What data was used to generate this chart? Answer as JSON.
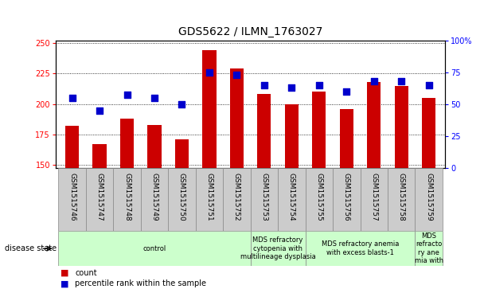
{
  "title": "GDS5622 / ILMN_1763027",
  "samples": [
    "GSM1515746",
    "GSM1515747",
    "GSM1515748",
    "GSM1515749",
    "GSM1515750",
    "GSM1515751",
    "GSM1515752",
    "GSM1515753",
    "GSM1515754",
    "GSM1515755",
    "GSM1515756",
    "GSM1515757",
    "GSM1515758",
    "GSM1515759"
  ],
  "counts": [
    182,
    167,
    188,
    183,
    171,
    244,
    229,
    208,
    200,
    210,
    196,
    218,
    215,
    205
  ],
  "percentiles": [
    55,
    45,
    57,
    55,
    50,
    75,
    73,
    65,
    63,
    65,
    60,
    68,
    68,
    65
  ],
  "ylim_left": [
    148,
    252
  ],
  "ylim_right": [
    0,
    100
  ],
  "yticks_left": [
    150,
    175,
    200,
    225,
    250
  ],
  "yticks_right": [
    0,
    25,
    50,
    75,
    100
  ],
  "bar_color": "#cc0000",
  "dot_color": "#0000cc",
  "bg_color": "#ffffff",
  "tick_area_color": "#cccccc",
  "disease_state_groups": [
    {
      "label": "control",
      "start": 0,
      "end": 7
    },
    {
      "label": "MDS refractory\ncytopenia with\nmultilineage dysplasia",
      "start": 7,
      "end": 9
    },
    {
      "label": "MDS refractory anemia\nwith excess blasts-1",
      "start": 9,
      "end": 13
    },
    {
      "label": "MDS\nrefracto\nry ane\nmia with",
      "start": 13,
      "end": 14
    }
  ],
  "disease_color": "#ccffcc",
  "legend_count_label": "count",
  "legend_pct_label": "percentile rank within the sample",
  "disease_state_label": "disease state",
  "bar_width": 0.5,
  "dot_size": 40,
  "title_fontsize": 10,
  "tick_fontsize": 7,
  "label_fontsize": 7,
  "small_fontsize": 6
}
